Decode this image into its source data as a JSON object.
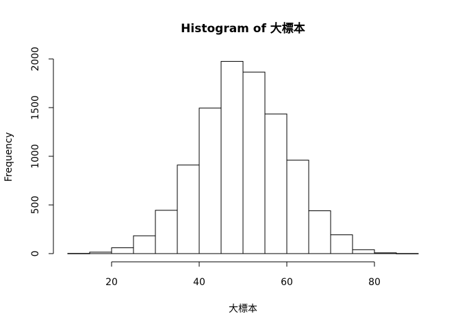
{
  "chart_data": {
    "type": "bar",
    "subtype": "histogram",
    "title": "Histogram of 大標本",
    "xlabel": "大標本",
    "ylabel": "Frequency",
    "bins": [
      {
        "from": 10,
        "to": 15,
        "count": 2
      },
      {
        "from": 15,
        "to": 20,
        "count": 15
      },
      {
        "from": 20,
        "to": 25,
        "count": 60
      },
      {
        "from": 25,
        "to": 30,
        "count": 183
      },
      {
        "from": 30,
        "to": 35,
        "count": 445
      },
      {
        "from": 35,
        "to": 40,
        "count": 910
      },
      {
        "from": 40,
        "to": 45,
        "count": 1495
      },
      {
        "from": 45,
        "to": 50,
        "count": 1975
      },
      {
        "from": 50,
        "to": 55,
        "count": 1865
      },
      {
        "from": 55,
        "to": 60,
        "count": 1435
      },
      {
        "from": 60,
        "to": 65,
        "count": 960
      },
      {
        "from": 65,
        "to": 70,
        "count": 440
      },
      {
        "from": 70,
        "to": 75,
        "count": 193
      },
      {
        "from": 75,
        "to": 80,
        "count": 40
      },
      {
        "from": 80,
        "to": 85,
        "count": 8
      },
      {
        "from": 85,
        "to": 90,
        "count": 1
      }
    ],
    "xlim": [
      10,
      90
    ],
    "ylim": [
      0,
      2000
    ],
    "xticks": [
      20,
      40,
      60,
      80
    ],
    "yticks": [
      0,
      500,
      1000,
      1500,
      2000
    ],
    "grid": false,
    "legend": "none"
  }
}
